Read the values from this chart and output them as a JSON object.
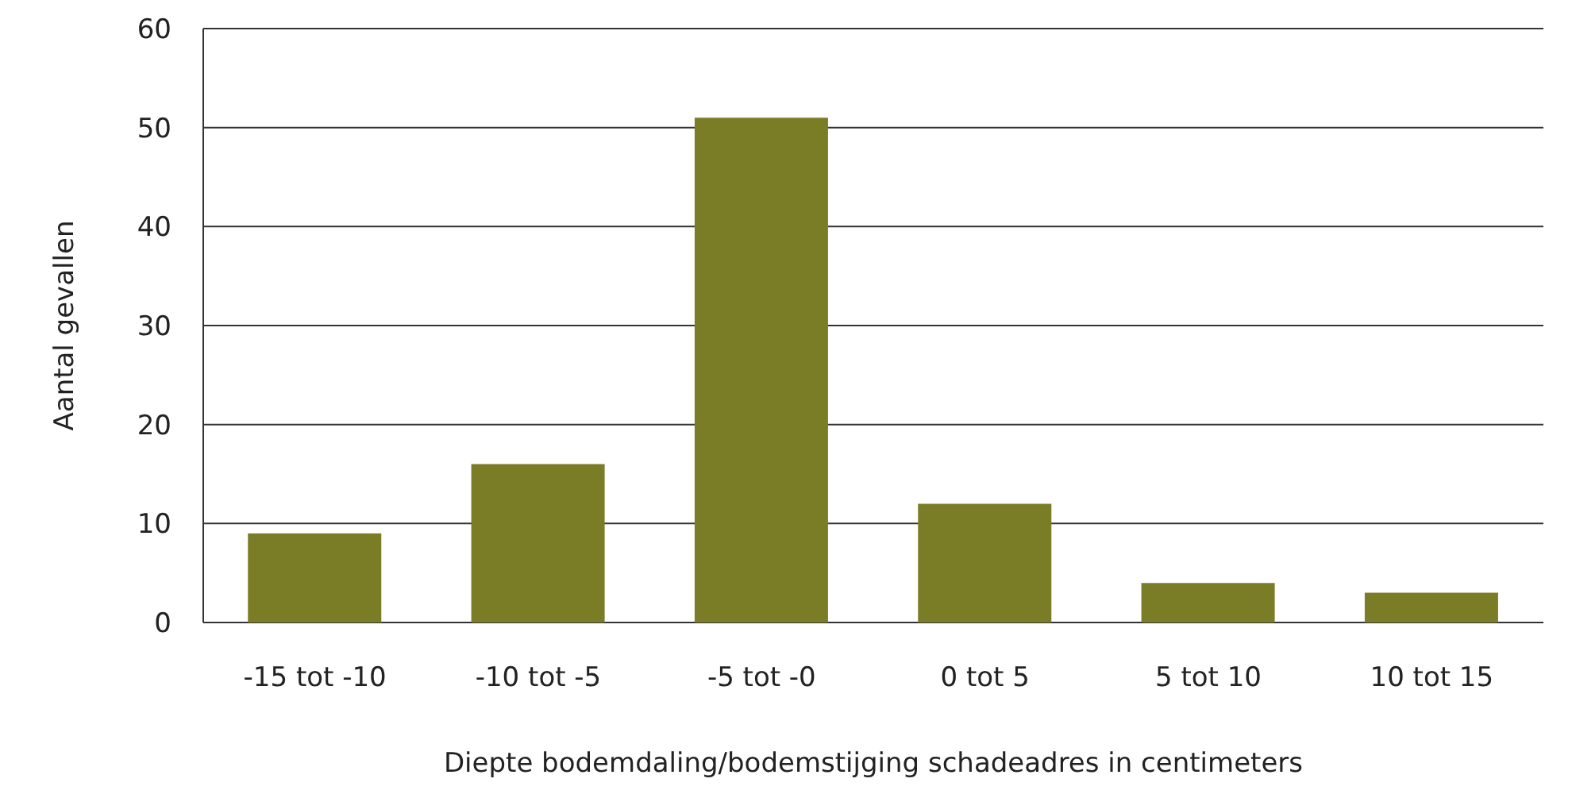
{
  "chart_data": {
    "type": "bar",
    "xlabel": "Diepte bodemdaling/bodemstijging schadeadres in centimeters",
    "ylabel": "Aantal gevallen",
    "categories": [
      "-15 tot -10",
      "-10 tot -5",
      "-5 tot -0",
      "0 tot 5",
      "5 tot 10",
      "10 tot 15"
    ],
    "values": [
      9,
      16,
      51,
      12,
      4,
      3
    ],
    "color": "#7a7d26",
    "ylim": [
      0,
      60
    ],
    "yticks": [
      0,
      10,
      20,
      30,
      40,
      50,
      60
    ],
    "grid": "y"
  }
}
